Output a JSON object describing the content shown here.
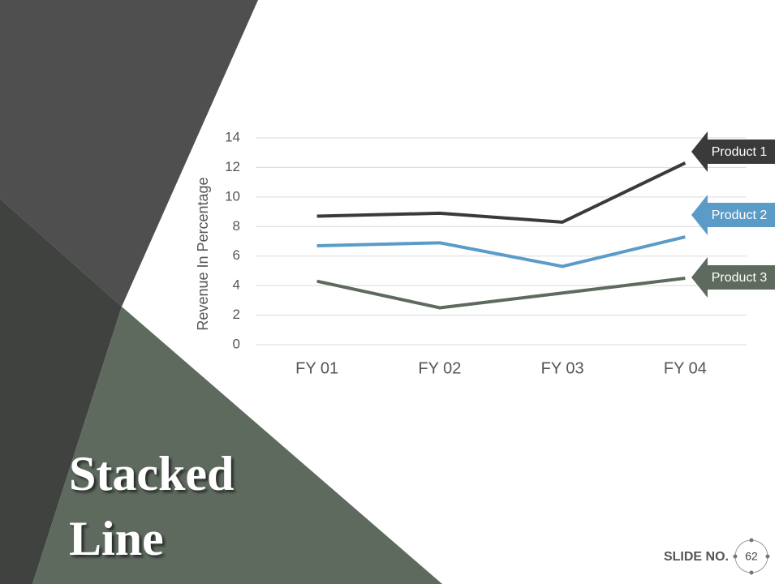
{
  "chart_data": {
    "type": "line",
    "y_label": "Revenue In Percentage",
    "categories": [
      "FY 01",
      "FY 02",
      "FY 03",
      "FY 04"
    ],
    "series": [
      {
        "name": "Product 1",
        "color": "#3a3a3a",
        "values": [
          8.7,
          8.9,
          8.3,
          12.3
        ]
      },
      {
        "name": "Product 2",
        "color": "#5b9bc8",
        "values": [
          6.7,
          6.9,
          5.3,
          7.3
        ]
      },
      {
        "name": "Product 3",
        "color": "#5f6a5f",
        "values": [
          4.3,
          2.5,
          3.5,
          4.5
        ]
      }
    ],
    "ylim": [
      0,
      14
    ],
    "yticks": [
      0,
      2,
      4,
      6,
      8,
      10,
      12,
      14
    ],
    "grid": true
  },
  "slide": {
    "title_lines": [
      "Stacked",
      "Line"
    ],
    "number_label": "SLIDE NO.",
    "number": 62
  }
}
